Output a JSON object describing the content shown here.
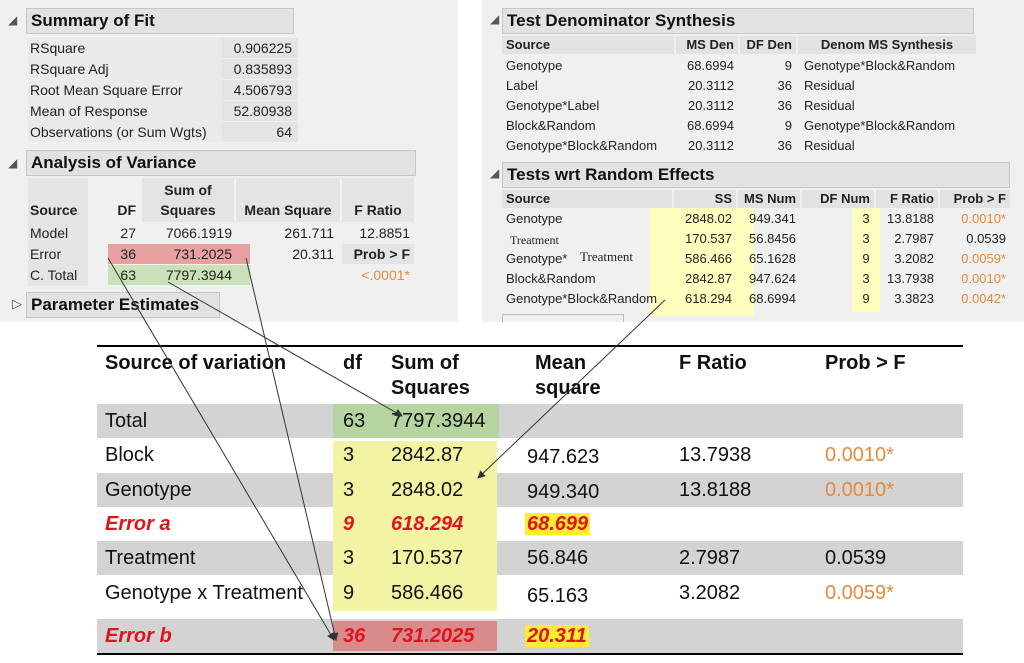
{
  "summary_of_fit": {
    "title": "Summary of Fit",
    "rows": [
      {
        "label": "RSquare",
        "value": "0.906225"
      },
      {
        "label": "RSquare Adj",
        "value": "0.835893"
      },
      {
        "label": "Root Mean Square Error",
        "value": "4.506793"
      },
      {
        "label": "Mean of Response",
        "value": "52.80938"
      },
      {
        "label": "Observations (or Sum Wgts)",
        "value": "64"
      }
    ]
  },
  "anova": {
    "title": "Analysis of Variance",
    "headers": {
      "source": "Source",
      "df": "DF",
      "ss1": "Sum of",
      "ss2": "Squares",
      "ms": "Mean Square",
      "f": "F Ratio",
      "prob": "Prob > F"
    },
    "rows": [
      {
        "source": "Model",
        "df": "27",
        "ss": "7066.1919",
        "ms": "261.711",
        "f": "12.8851"
      },
      {
        "source": "Error",
        "df": "36",
        "ss": "731.2025",
        "ms": "20.311"
      },
      {
        "source": "C. Total",
        "df": "63",
        "ss": "7797.3944",
        "prob": "<.0001*"
      }
    ]
  },
  "parameter_estimates": {
    "title": "Parameter Estimates"
  },
  "test_denominator": {
    "title": "Test Denominator Synthesis",
    "headers": {
      "source": "Source",
      "ms_den": "MS Den",
      "df_den": "DF Den",
      "synth": "Denom MS Synthesis"
    },
    "rows": [
      {
        "source": "Genotype",
        "ms_den": "68.6994",
        "df_den": "9",
        "synth": "Genotype*Block&Random"
      },
      {
        "source": "Label",
        "ms_den": "20.3112",
        "df_den": "36",
        "synth": "Residual"
      },
      {
        "source": "Genotype*Label",
        "ms_den": "20.3112",
        "df_den": "36",
        "synth": "Residual"
      },
      {
        "source": "Block&Random",
        "ms_den": "68.6994",
        "df_den": "9",
        "synth": "Genotype*Block&Random"
      },
      {
        "source": "Genotype*Block&Random",
        "ms_den": "20.3112",
        "df_den": "36",
        "synth": "Residual"
      }
    ]
  },
  "random_effects": {
    "title": "Tests wrt Random Effects",
    "headers": {
      "source": "Source",
      "ss": "SS",
      "ms_num": "MS Num",
      "df_num": "DF Num",
      "f": "F Ratio",
      "prob": "Prob > F"
    },
    "rows": [
      {
        "source": "Genotype",
        "ss": "2848.02",
        "ms_num": "949.341",
        "df_num": "3",
        "f": "13.8188",
        "prob": "0.0010*"
      },
      {
        "source": "Treatment",
        "ss": "170.537",
        "ms_num": "56.8456",
        "df_num": "3",
        "f": "2.7987",
        "prob": "0.0539"
      },
      {
        "source": "Genotype*",
        "source_overlay": "Treatment",
        "ss": "586.466",
        "ms_num": "65.1628",
        "df_num": "9",
        "f": "3.2082",
        "prob": "0.0059*"
      },
      {
        "source": "Block&Random",
        "ss": "2842.87",
        "ms_num": "947.624",
        "df_num": "3",
        "f": "13.7938",
        "prob": "0.0010*"
      },
      {
        "source": "Genotype*Block&Random",
        "ss": "618.294",
        "ms_num": "68.6994",
        "df_num": "9",
        "f": "3.3823",
        "prob": "0.0042*"
      }
    ]
  },
  "final_table": {
    "headers": {
      "source": "Source of variation",
      "df": "df",
      "ss1": "Sum of",
      "ss2": "Squares",
      "ms1": "Mean",
      "ms2": "square",
      "f": "F Ratio",
      "prob": "Prob > F"
    },
    "rows": [
      {
        "source": "Total",
        "df": "63",
        "ss": "7797.3944",
        "ms": "",
        "f": "",
        "prob": ""
      },
      {
        "source": "Block",
        "df": "3",
        "ss": "2842.87",
        "ms": "947.623",
        "f": "13.7938",
        "prob": "0.0010*"
      },
      {
        "source": "Genotype",
        "df": "3",
        "ss": "2848.02",
        "ms": "949.340",
        "f": "13.8188",
        "prob": "0.0010*"
      },
      {
        "source": "Error a",
        "df": "9",
        "ss": "618.294",
        "ms": "68.699",
        "f": "",
        "prob": ""
      },
      {
        "source": "Treatment",
        "df": "3",
        "ss": "170.537",
        "ms": "56.846",
        "f": "2.7987",
        "prob": "0.0539"
      },
      {
        "source": "Genotype x Treatment",
        "df": "9",
        "ss": "586.466",
        "ms": "65.163",
        "f": "3.2082",
        "prob": "0.0059*"
      },
      {
        "source": "Error b",
        "df": "36",
        "ss": "731.2025",
        "ms": "20.311",
        "f": "",
        "prob": ""
      }
    ]
  },
  "colors": {
    "highlight_yellow": "#ffffc0",
    "highlight_green": "#c9e0b8",
    "highlight_red": "#e8a0a0",
    "error_red": "#e0141e",
    "prob_orange": "#e88a3a"
  },
  "icons": [
    "disclosure-open-icon",
    "disclosure-closed-icon"
  ]
}
